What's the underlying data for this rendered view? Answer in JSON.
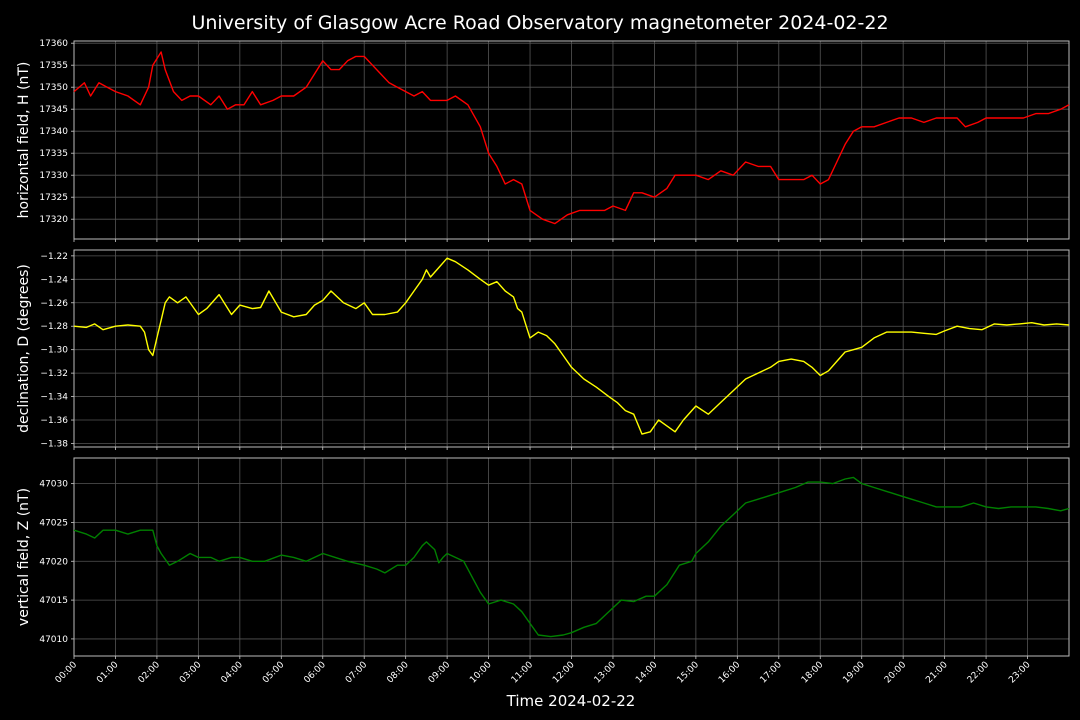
{
  "chart_data": {
    "type": "line",
    "title": "University of Glasgow Acre Road Observatory magnetometer 2024-02-22",
    "xlabel": "Time 2024-02-22",
    "x_ticks": [
      "00:00",
      "01:00",
      "02:00",
      "03:00",
      "04:00",
      "05:00",
      "06:00",
      "07:00",
      "08:00",
      "09:00",
      "10:00",
      "11:00",
      "12:00",
      "13:00",
      "14:00",
      "15:00",
      "16:00",
      "17:00",
      "18:00",
      "19:00",
      "20:00",
      "21:00",
      "22:00",
      "23:00"
    ],
    "xlim": [
      0,
      24
    ],
    "grid": true,
    "panels": [
      {
        "ylabel": "horizontal field, H (nT)",
        "color": "#ff0000",
        "ylim": [
          17315.5,
          17360.5
        ],
        "y_ticks": [
          "17360",
          "17355",
          "17350",
          "17345",
          "17340",
          "17335",
          "17330",
          "17325",
          "17320"
        ],
        "y_tick_values": [
          17360,
          17355,
          17350,
          17345,
          17340,
          17335,
          17330,
          17325,
          17320
        ],
        "x": [
          0,
          0.25,
          0.4,
          0.6,
          0.8,
          1.0,
          1.3,
          1.6,
          1.8,
          1.9,
          2.1,
          2.2,
          2.4,
          2.6,
          2.8,
          3.0,
          3.3,
          3.5,
          3.7,
          3.9,
          4.1,
          4.3,
          4.5,
          4.8,
          5.0,
          5.3,
          5.6,
          5.8,
          6.0,
          6.2,
          6.4,
          6.6,
          6.8,
          7.0,
          7.2,
          7.4,
          7.6,
          7.8,
          8.0,
          8.2,
          8.4,
          8.6,
          8.8,
          9.0,
          9.2,
          9.5,
          9.8,
          10.0,
          10.2,
          10.4,
          10.6,
          10.8,
          11.0,
          11.3,
          11.6,
          11.9,
          12.2,
          12.5,
          12.8,
          13.0,
          13.3,
          13.5,
          13.7,
          14.0,
          14.3,
          14.5,
          14.7,
          15.0,
          15.3,
          15.6,
          15.9,
          16.2,
          16.5,
          16.8,
          17.0,
          17.3,
          17.6,
          17.8,
          18.0,
          18.2,
          18.4,
          18.6,
          18.8,
          19.0,
          19.3,
          19.6,
          19.9,
          20.2,
          20.5,
          20.8,
          21.0,
          21.3,
          21.5,
          21.8,
          22.0,
          22.3,
          22.6,
          22.9,
          23.2,
          23.5,
          23.8,
          24.0
        ],
        "values": [
          17349,
          17351,
          17348,
          17351,
          17350,
          17349,
          17348,
          17346,
          17350,
          17355,
          17358,
          17354,
          17349,
          17347,
          17348,
          17348,
          17346,
          17348,
          17345,
          17346,
          17346,
          17349,
          17346,
          17347,
          17348,
          17348,
          17350,
          17353,
          17356,
          17354,
          17354,
          17356,
          17357,
          17357,
          17355,
          17353,
          17351,
          17350,
          17349,
          17348,
          17349,
          17347,
          17347,
          17347,
          17348,
          17346,
          17341,
          17335,
          17332,
          17328,
          17329,
          17328,
          17322,
          17320,
          17319,
          17321,
          17322,
          17322,
          17322,
          17323,
          17322,
          17326,
          17326,
          17325,
          17327,
          17330,
          17330,
          17330,
          17329,
          17331,
          17330,
          17333,
          17332,
          17332,
          17329,
          17329,
          17329,
          17330,
          17328,
          17329,
          17333,
          17337,
          17340,
          17341,
          17341,
          17342,
          17343,
          17343,
          17342,
          17343,
          17343,
          17343,
          17341,
          17342,
          17343,
          17343,
          17343,
          17343,
          17344,
          17344,
          17345,
          17346
        ]
      },
      {
        "ylabel": "declination, D (degrees)",
        "color": "#ffff00",
        "ylim": [
          -1.383,
          -1.215
        ],
        "y_ticks": [
          "-1.22",
          "-1.24",
          "-1.26",
          "-1.28",
          "-1.30",
          "-1.32",
          "-1.34",
          "-1.36",
          "-1.38"
        ],
        "y_tick_values": [
          -1.22,
          -1.24,
          -1.26,
          -1.28,
          -1.3,
          -1.32,
          -1.34,
          -1.36,
          -1.38
        ],
        "x": [
          0,
          0.3,
          0.5,
          0.7,
          1.0,
          1.3,
          1.6,
          1.7,
          1.8,
          1.9,
          2.0,
          2.1,
          2.2,
          2.3,
          2.5,
          2.7,
          3.0,
          3.2,
          3.5,
          3.8,
          4.0,
          4.3,
          4.5,
          4.7,
          5.0,
          5.3,
          5.6,
          5.8,
          6.0,
          6.2,
          6.5,
          6.8,
          7.0,
          7.2,
          7.5,
          7.8,
          8.0,
          8.2,
          8.4,
          8.5,
          8.6,
          8.8,
          9.0,
          9.2,
          9.5,
          9.8,
          10.0,
          10.2,
          10.4,
          10.6,
          10.7,
          10.8,
          11.0,
          11.2,
          11.4,
          11.6,
          11.8,
          12.0,
          12.3,
          12.6,
          12.9,
          13.1,
          13.3,
          13.5,
          13.7,
          13.9,
          14.1,
          14.3,
          14.5,
          14.7,
          15.0,
          15.3,
          15.6,
          15.9,
          16.2,
          16.5,
          16.8,
          17.0,
          17.3,
          17.6,
          17.8,
          18.0,
          18.2,
          18.4,
          18.6,
          18.8,
          19.0,
          19.3,
          19.6,
          19.9,
          20.2,
          20.5,
          20.8,
          21.0,
          21.3,
          21.6,
          21.9,
          22.2,
          22.5,
          22.8,
          23.1,
          23.4,
          23.7,
          24.0
        ],
        "values": [
          -1.28,
          -1.281,
          -1.278,
          -1.283,
          -1.28,
          -1.279,
          -1.28,
          -1.285,
          -1.3,
          -1.305,
          -1.29,
          -1.275,
          -1.26,
          -1.255,
          -1.26,
          -1.255,
          -1.27,
          -1.265,
          -1.253,
          -1.27,
          -1.262,
          -1.265,
          -1.264,
          -1.25,
          -1.268,
          -1.272,
          -1.27,
          -1.262,
          -1.258,
          -1.25,
          -1.26,
          -1.265,
          -1.26,
          -1.27,
          -1.27,
          -1.268,
          -1.26,
          -1.25,
          -1.24,
          -1.232,
          -1.238,
          -1.23,
          -1.222,
          -1.225,
          -1.232,
          -1.24,
          -1.245,
          -1.242,
          -1.25,
          -1.255,
          -1.265,
          -1.268,
          -1.29,
          -1.285,
          -1.288,
          -1.295,
          -1.305,
          -1.315,
          -1.325,
          -1.332,
          -1.34,
          -1.345,
          -1.352,
          -1.355,
          -1.372,
          -1.37,
          -1.36,
          -1.365,
          -1.37,
          -1.36,
          -1.348,
          -1.355,
          -1.345,
          -1.335,
          -1.325,
          -1.32,
          -1.315,
          -1.31,
          -1.308,
          -1.31,
          -1.315,
          -1.322,
          -1.318,
          -1.31,
          -1.302,
          -1.3,
          -1.298,
          -1.29,
          -1.285,
          -1.285,
          -1.285,
          -1.286,
          -1.287,
          -1.284,
          -1.28,
          -1.282,
          -1.283,
          -1.278,
          -1.279,
          -1.278,
          -1.277,
          -1.279,
          -1.278,
          -1.279
        ]
      },
      {
        "ylabel": "vertical field, Z (nT)",
        "color": "#008000",
        "ylim": [
          47007.8,
          47033.3
        ],
        "y_ticks": [
          "47030",
          "47025",
          "47020",
          "47015",
          "47010"
        ],
        "y_tick_values": [
          47030,
          47025,
          47020,
          47015,
          47010
        ],
        "x": [
          0,
          0.3,
          0.5,
          0.7,
          1.0,
          1.3,
          1.6,
          1.9,
          2.0,
          2.1,
          2.3,
          2.5,
          2.8,
          3.0,
          3.3,
          3.5,
          3.8,
          4.0,
          4.3,
          4.6,
          5.0,
          5.3,
          5.6,
          6.0,
          6.3,
          6.6,
          7.0,
          7.3,
          7.5,
          7.8,
          8.0,
          8.2,
          8.4,
          8.5,
          8.7,
          8.8,
          8.9,
          9.0,
          9.2,
          9.4,
          9.6,
          9.8,
          10.0,
          10.3,
          10.6,
          10.8,
          11.0,
          11.2,
          11.5,
          11.8,
          12.0,
          12.3,
          12.6,
          12.9,
          13.2,
          13.5,
          13.8,
          14.0,
          14.3,
          14.6,
          14.9,
          15.0,
          15.3,
          15.6,
          15.9,
          16.2,
          16.5,
          16.8,
          17.1,
          17.4,
          17.7,
          18.0,
          18.3,
          18.6,
          18.8,
          19.0,
          19.3,
          19.6,
          19.9,
          20.2,
          20.5,
          20.8,
          21.1,
          21.4,
          21.7,
          22.0,
          22.3,
          22.6,
          22.9,
          23.2,
          23.5,
          23.8,
          24.0
        ],
        "values": [
          47024,
          47023.5,
          47023,
          47024,
          47024,
          47023.5,
          47024,
          47024,
          47022,
          47021,
          47019.5,
          47020,
          47021,
          47020.5,
          47020.5,
          47020,
          47020.5,
          47020.5,
          47020,
          47020,
          47020.8,
          47020.5,
          47020,
          47021,
          47020.5,
          47020,
          47019.5,
          47019,
          47018.5,
          47019.5,
          47019.5,
          47020.5,
          47022,
          47022.5,
          47021.5,
          47019.8,
          47020.5,
          47021,
          47020.5,
          47020,
          47018,
          47016,
          47014.5,
          47015,
          47014.5,
          47013.5,
          47012,
          47010.5,
          47010.3,
          47010.5,
          47010.8,
          47011.5,
          47012,
          47013.5,
          47015,
          47014.8,
          47015.5,
          47015.5,
          47017,
          47019.5,
          47020,
          47021,
          47022.5,
          47024.5,
          47026,
          47027.5,
          47028,
          47028.5,
          47029,
          47029.5,
          47030.2,
          47030.2,
          47030,
          47030.6,
          47030.8,
          47030,
          47029.5,
          47029,
          47028.5,
          47028,
          47027.5,
          47027,
          47027,
          47027,
          47027.5,
          47027,
          47026.8,
          47027,
          47027,
          47027,
          47026.8,
          47026.5,
          47026.8
        ]
      }
    ]
  }
}
